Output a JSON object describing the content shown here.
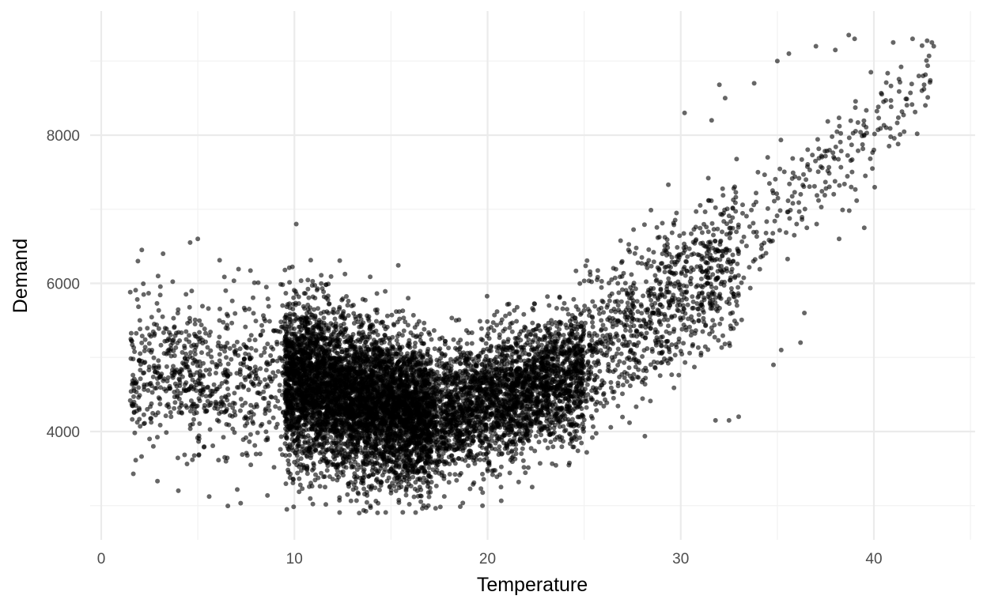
{
  "chart_data": {
    "type": "scatter",
    "title": "",
    "xlabel": "Temperature",
    "ylabel": "Demand",
    "xlim": [
      0,
      45
    ],
    "ylim": [
      2600,
      9500
    ],
    "x_ticks": [
      0,
      10,
      20,
      30,
      40
    ],
    "x_tick_labels": [
      "0",
      "10",
      "20",
      "30",
      "40"
    ],
    "y_ticks": [
      4000,
      6000,
      8000
    ],
    "y_tick_labels": [
      "4000",
      "6000",
      "8000"
    ],
    "x_minor_ticks": [
      5,
      15,
      25,
      35,
      45
    ],
    "y_minor_ticks": [
      3000,
      5000,
      7000,
      9000
    ],
    "grid": true,
    "legend": "none",
    "point_color": "#000000",
    "point_opacity": 0.6,
    "background": "#ffffff",
    "grid_major_color": "#ebebeb",
    "grid_minor_color": "#f2f2f2",
    "clusters": [
      {
        "x": [
          1.5,
          9.5
        ],
        "y_center": [
          4800,
          4700
        ],
        "y_spread": [
          900,
          1000
        ],
        "n": 700
      },
      {
        "x": [
          9.5,
          17
        ],
        "y_center": [
          4700,
          4200
        ],
        "y_spread": [
          1000,
          900
        ],
        "n": 5200
      },
      {
        "x": [
          17,
          25
        ],
        "y_center": [
          4200,
          4800
        ],
        "y_spread": [
          800,
          800
        ],
        "n": 2800
      },
      {
        "x": [
          25,
          33
        ],
        "y_center": [
          5000,
          6400
        ],
        "y_spread": [
          900,
          900
        ],
        "n": 900
      },
      {
        "x": [
          33,
          43
        ],
        "y_center": [
          6500,
          8800
        ],
        "y_spread": [
          800,
          500
        ],
        "n": 220
      }
    ],
    "outliers": [
      [
        1.6,
        4350
      ],
      [
        1.7,
        4550
      ],
      [
        1.9,
        6300
      ],
      [
        2.1,
        6450
      ],
      [
        2.0,
        5500
      ],
      [
        2.2,
        5850
      ],
      [
        2.1,
        4950
      ],
      [
        2.5,
        3900
      ],
      [
        2.7,
        3800
      ],
      [
        3.2,
        6400
      ],
      [
        4.6,
        6550
      ],
      [
        5.0,
        6600
      ],
      [
        30.2,
        8300
      ],
      [
        31.6,
        8200
      ],
      [
        32.0,
        8680
      ],
      [
        32.3,
        8500
      ],
      [
        33.8,
        8700
      ],
      [
        34.0,
        7500
      ],
      [
        34.5,
        7700
      ],
      [
        35.0,
        9000
      ],
      [
        35.6,
        9100
      ],
      [
        36.4,
        5600
      ],
      [
        36.2,
        5200
      ],
      [
        37.0,
        9200
      ],
      [
        38.0,
        9150
      ],
      [
        38.7,
        9350
      ],
      [
        39.0,
        9300
      ],
      [
        39.5,
        6750
      ],
      [
        40.0,
        7800
      ],
      [
        41.0,
        9250
      ],
      [
        42.0,
        9300
      ],
      [
        43.0,
        9250
      ],
      [
        43.1,
        9200
      ],
      [
        40.5,
        8450
      ],
      [
        38.2,
        6600
      ],
      [
        36.0,
        6800
      ],
      [
        35.2,
        5100
      ],
      [
        34.8,
        4900
      ],
      [
        33.0,
        4200
      ],
      [
        32.5,
        4150
      ],
      [
        31.8,
        4150
      ]
    ]
  }
}
